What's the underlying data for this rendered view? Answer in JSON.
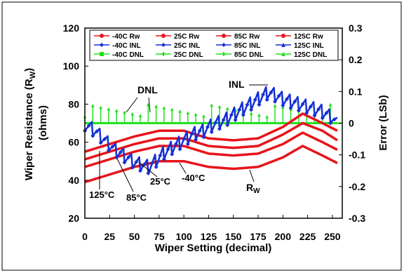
{
  "chart_data": {
    "type": "line",
    "xlabel": "Wiper Setting (decimal)",
    "ylabel_left": "Wiper Resistance (R W) (ohms)",
    "ylabel_left_line1": "Wiper Resistance (R",
    "ylabel_left_sub": "W",
    "ylabel_left_close": ")",
    "ylabel_left_line2": "(ohms)",
    "ylabel_right": "Error (LSb)",
    "xlim": [
      0,
      260
    ],
    "ylim_left": [
      20,
      120
    ],
    "ylim_right": [
      -0.3,
      0.3
    ],
    "x_ticks": [
      0,
      25,
      50,
      75,
      100,
      125,
      150,
      175,
      200,
      225,
      250
    ],
    "x_tick_labels": [
      "0",
      "25",
      "50",
      "75",
      "100",
      "125",
      "150",
      "175",
      "200",
      "225",
      "250"
    ],
    "y_left_ticks": [
      20,
      40,
      60,
      80,
      100,
      120
    ],
    "y_left_tick_labels": [
      "20",
      "40",
      "60",
      "80",
      "100",
      "120"
    ],
    "y_right_ticks": [
      -0.3,
      -0.2,
      -0.1,
      0,
      0.1,
      0.2,
      0.3
    ],
    "y_right_tick_labels": [
      "-0.3",
      "-0.2",
      "-0.1",
      "0",
      "0.1",
      "0.2",
      "0.3"
    ],
    "grid": false,
    "legend_placement": "top",
    "legend": [
      {
        "label": "-40C Rw",
        "marker": "circle",
        "color": "#e8141b"
      },
      {
        "label": "25C Rw",
        "marker": "circle",
        "color": "#e8141b"
      },
      {
        "label": "85C Rw",
        "marker": "circle",
        "color": "#e8141b"
      },
      {
        "label": "125C Rw",
        "marker": "circle",
        "color": "#e8141b"
      },
      {
        "label": "-40C INL",
        "marker": "diamond",
        "color": "#1530d6"
      },
      {
        "label": "25C INL",
        "marker": "diamond",
        "color": "#1530d6"
      },
      {
        "label": "85C INL",
        "marker": "diamond",
        "color": "#1530d6"
      },
      {
        "label": "125C INL",
        "marker": "triangle",
        "color": "#1530d6"
      },
      {
        "label": "-40C DNL",
        "marker": "square",
        "color": "#22e01e"
      },
      {
        "label": "25C DNL",
        "marker": "cross",
        "color": "#22e01e"
      },
      {
        "label": "85C DNL",
        "marker": "cross",
        "color": "#22e01e"
      },
      {
        "label": "125C DNL",
        "marker": "triangle",
        "color": "#22e01e"
      }
    ],
    "rw_series": [
      {
        "name": "-40C Rw",
        "points": [
          [
            0,
            39
          ],
          [
            25,
            43
          ],
          [
            50,
            47
          ],
          [
            75,
            50
          ],
          [
            100,
            50
          ],
          [
            125,
            47
          ],
          [
            150,
            46
          ],
          [
            175,
            47
          ],
          [
            200,
            52
          ],
          [
            220,
            58
          ],
          [
            240,
            53
          ],
          [
            255,
            49
          ]
        ]
      },
      {
        "name": "25C Rw",
        "points": [
          [
            0,
            47
          ],
          [
            25,
            51
          ],
          [
            50,
            55
          ],
          [
            75,
            58
          ],
          [
            100,
            58
          ],
          [
            125,
            54
          ],
          [
            150,
            53
          ],
          [
            175,
            54
          ],
          [
            200,
            59
          ],
          [
            220,
            65
          ],
          [
            240,
            60
          ],
          [
            255,
            56
          ]
        ]
      },
      {
        "name": "85C Rw",
        "points": [
          [
            0,
            51
          ],
          [
            25,
            55
          ],
          [
            50,
            59
          ],
          [
            75,
            62
          ],
          [
            100,
            62
          ],
          [
            125,
            58
          ],
          [
            150,
            57
          ],
          [
            175,
            58
          ],
          [
            200,
            64
          ],
          [
            220,
            70
          ],
          [
            240,
            66
          ],
          [
            255,
            61
          ]
        ]
      },
      {
        "name": "125C Rw",
        "points": [
          [
            0,
            55
          ],
          [
            25,
            59
          ],
          [
            50,
            63
          ],
          [
            75,
            66
          ],
          [
            100,
            66
          ],
          [
            125,
            62
          ],
          [
            150,
            61
          ],
          [
            175,
            62
          ],
          [
            200,
            68
          ],
          [
            220,
            75
          ],
          [
            240,
            70
          ],
          [
            255,
            66
          ]
        ]
      }
    ],
    "inl_series": [
      {
        "name": "INL",
        "points": [
          [
            0,
            0
          ],
          [
            10,
            -0.02
          ],
          [
            20,
            -0.05
          ],
          [
            30,
            -0.08
          ],
          [
            40,
            -0.1
          ],
          [
            50,
            -0.12
          ],
          [
            60,
            -0.13
          ],
          [
            65,
            -0.135
          ],
          [
            70,
            -0.12
          ],
          [
            80,
            -0.09
          ],
          [
            90,
            -0.07
          ],
          [
            100,
            -0.05
          ],
          [
            110,
            -0.03
          ],
          [
            120,
            -0.02
          ],
          [
            130,
            0
          ],
          [
            140,
            0.01
          ],
          [
            150,
            0.03
          ],
          [
            160,
            0.05
          ],
          [
            170,
            0.07
          ],
          [
            180,
            0.09
          ],
          [
            185,
            0.1
          ],
          [
            190,
            0.095
          ],
          [
            200,
            0.08
          ],
          [
            210,
            0.07
          ],
          [
            220,
            0.06
          ],
          [
            230,
            0.05
          ],
          [
            240,
            0.04
          ],
          [
            250,
            0.02
          ],
          [
            255,
            0.0
          ]
        ]
      }
    ],
    "dnl_series": [
      {
        "name": "DNL",
        "points": [
          [
            0,
            0
          ],
          [
            255,
            0
          ]
        ]
      }
    ],
    "annotations": [
      {
        "text": "DNL",
        "x": 37,
        "y": 0.1
      },
      {
        "text": "INL",
        "x": 175,
        "y": 0.105
      },
      {
        "text": "125°C",
        "x": 5,
        "y": -0.225
      },
      {
        "text": "85°C",
        "x": 45,
        "y": -0.24
      },
      {
        "text": "25°C",
        "x": 74,
        "y": -0.21
      },
      {
        "text": "-40°C",
        "x": 106,
        "y": -0.2
      },
      {
        "text": "R",
        "sub": "W",
        "x": 187,
        "y": -0.24
      }
    ]
  },
  "colors": {
    "rw": "#e8141b",
    "inl": "#1530d6",
    "dnl": "#22e01e"
  }
}
